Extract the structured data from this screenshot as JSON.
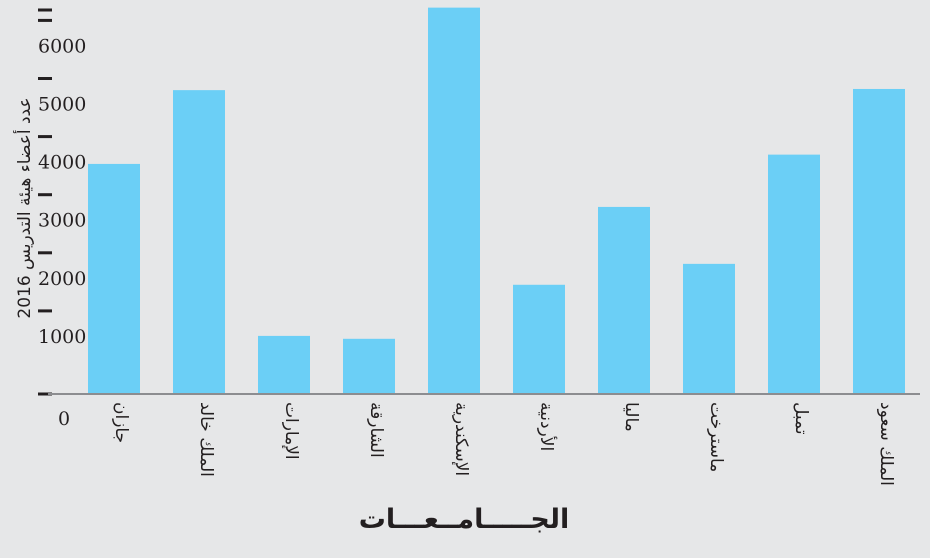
{
  "chart_data": {
    "type": "bar",
    "title": "",
    "xlabel": "الجـــــامــعـــات",
    "ylabel": "عدد أعضاء هيئة التدريس 2016",
    "categories": [
      "جازان",
      "الملك خالد",
      "الإمارات",
      "الشارقة",
      "الإسكندرية",
      "الأردنية",
      "ماليا",
      "ماسترخت",
      "تمبل",
      "الملك سعود"
    ],
    "values": [
      3960,
      5230,
      1000,
      950,
      6650,
      1880,
      3220,
      2240,
      4120,
      5250
    ],
    "yticks": [
      "0",
      "1000",
      "2000",
      "3000",
      "4000",
      "5000",
      "6000"
    ],
    "ylim": [
      0,
      6650
    ],
    "grid": false,
    "colors": {
      "bar": "#6bcff6",
      "background": "#e6e7e8",
      "axis": "#8c8d90",
      "tick": "#231f20"
    }
  }
}
